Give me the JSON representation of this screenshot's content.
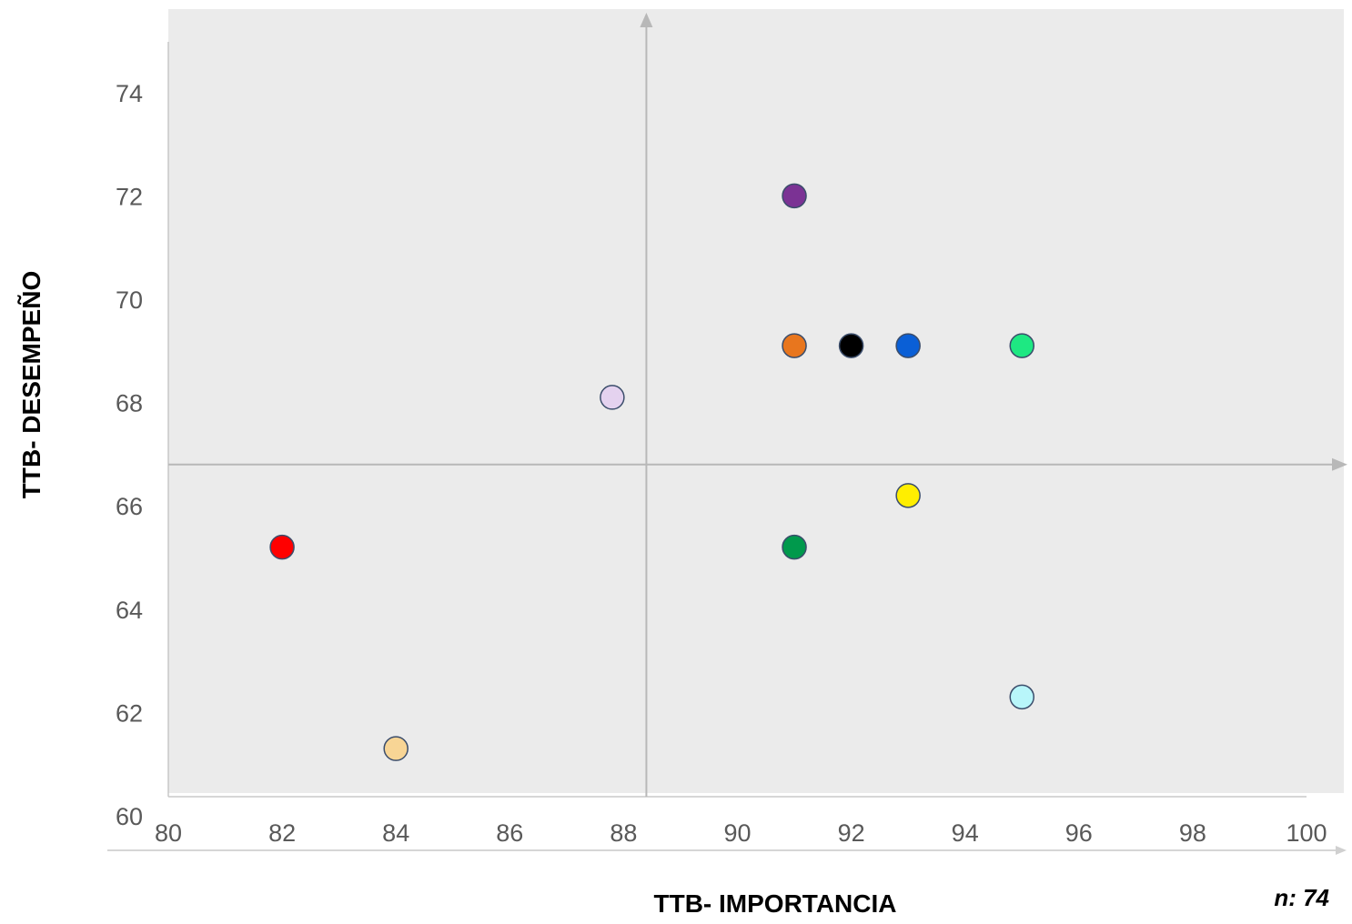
{
  "chart_data": {
    "type": "scatter",
    "xlabel": "TTB- IMPORTANCIA",
    "ylabel": "TTB- DESEMPEÑO",
    "xlim": [
      80,
      100
    ],
    "ylim": [
      60,
      75
    ],
    "x_ticks": [
      "80",
      "82",
      "84",
      "86",
      "88",
      "90",
      "92",
      "94",
      "96",
      "98",
      "100"
    ],
    "y_ticks": [
      "60",
      "62",
      "64",
      "66",
      "68",
      "70",
      "72",
      "74"
    ],
    "quadrant_lines": {
      "x": 88.4,
      "y": 66.8
    },
    "background": "#ebebeb",
    "grid": false,
    "legend": "none",
    "points": [
      {
        "x": 91,
        "y": 72.0,
        "color": "#7b3294"
      },
      {
        "x": 91,
        "y": 69.1,
        "color": "#e8761e"
      },
      {
        "x": 92,
        "y": 69.1,
        "color": "#000000"
      },
      {
        "x": 93,
        "y": 69.1,
        "color": "#0a5fd6"
      },
      {
        "x": 95,
        "y": 69.1,
        "color": "#1ee882"
      },
      {
        "x": 87.8,
        "y": 68.1,
        "color": "#e4d2ef"
      },
      {
        "x": 93,
        "y": 66.2,
        "color": "#ffee00"
      },
      {
        "x": 82,
        "y": 65.2,
        "color": "#ff0000"
      },
      {
        "x": 91,
        "y": 65.2,
        "color": "#00994c"
      },
      {
        "x": 95,
        "y": 62.3,
        "color": "#b8f6fa"
      },
      {
        "x": 84,
        "y": 61.3,
        "color": "#f8d595"
      }
    ]
  },
  "note": "n: 74"
}
